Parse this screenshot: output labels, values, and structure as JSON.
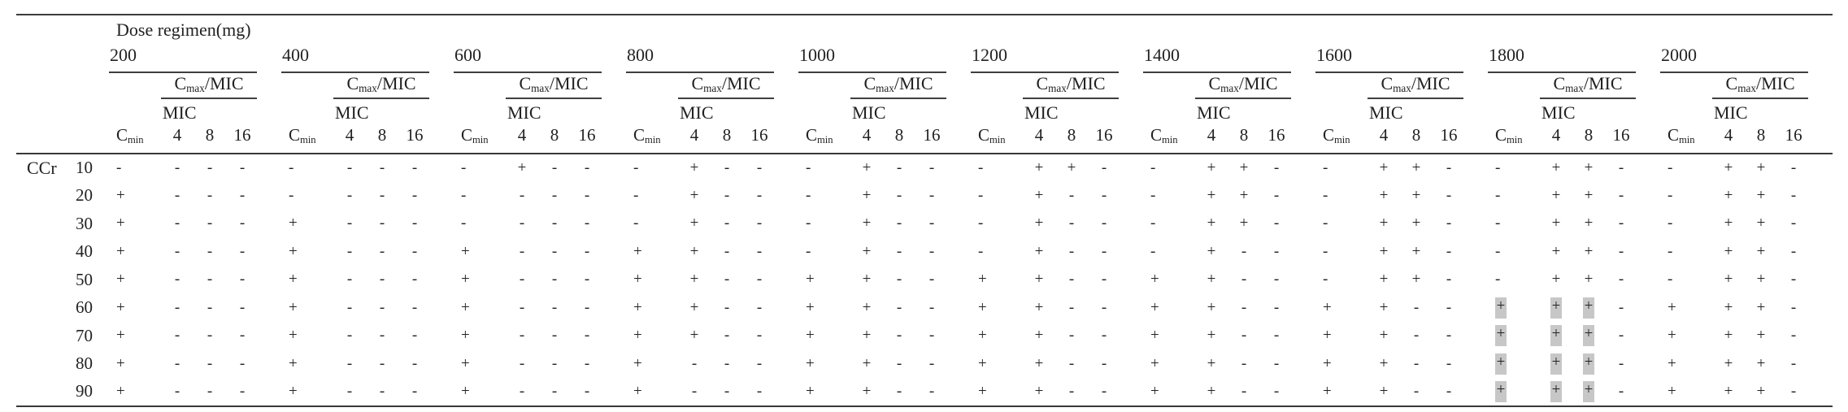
{
  "table": {
    "title": "Dose regimen(mg)",
    "row_axis_label": "CCr",
    "cmin_base": "C",
    "cmin_sub": "min",
    "cmax_base": "C",
    "cmax_sub": "max",
    "cmax_suffix": "/MIC",
    "mic_label": "MIC",
    "mic_values": [
      "4",
      "8",
      "16"
    ],
    "ccr_values": [
      "10",
      "20",
      "30",
      "40",
      "50",
      "60",
      "70",
      "80",
      "90"
    ],
    "symbols": {
      "attained": "+",
      "not_attained": "-"
    },
    "highlight": {
      "dose": "1800",
      "columns": [
        "cmin",
        "mic4",
        "mic8"
      ],
      "ccr_rows": [
        "60",
        "70",
        "80",
        "90"
      ],
      "color": "#c7c7c7"
    },
    "groups": [
      {
        "dose": "200",
        "cmin": [
          "-",
          "+",
          "+",
          "+",
          "+",
          "+",
          "+",
          "+",
          "+"
        ],
        "mic4": [
          "-",
          "-",
          "-",
          "-",
          "-",
          "-",
          "-",
          "-",
          "-"
        ],
        "mic8": [
          "-",
          "-",
          "-",
          "-",
          "-",
          "-",
          "-",
          "-",
          "-"
        ],
        "mic16": [
          "-",
          "-",
          "-",
          "-",
          "-",
          "-",
          "-",
          "-",
          "-"
        ]
      },
      {
        "dose": "400",
        "cmin": [
          "-",
          "-",
          "+",
          "+",
          "+",
          "+",
          "+",
          "+",
          "+"
        ],
        "mic4": [
          "-",
          "-",
          "-",
          "-",
          "-",
          "-",
          "-",
          "-",
          "-"
        ],
        "mic8": [
          "-",
          "-",
          "-",
          "-",
          "-",
          "-",
          "-",
          "-",
          "-"
        ],
        "mic16": [
          "-",
          "-",
          "-",
          "-",
          "-",
          "-",
          "-",
          "-",
          "-"
        ]
      },
      {
        "dose": "600",
        "cmin": [
          "-",
          "-",
          "-",
          "+",
          "+",
          "+",
          "+",
          "+",
          "+"
        ],
        "mic4": [
          "+",
          "-",
          "-",
          "-",
          "-",
          "-",
          "-",
          "-",
          "-"
        ],
        "mic8": [
          "-",
          "-",
          "-",
          "-",
          "-",
          "-",
          "-",
          "-",
          "-"
        ],
        "mic16": [
          "-",
          "-",
          "-",
          "-",
          "-",
          "-",
          "-",
          "-",
          "-"
        ]
      },
      {
        "dose": "800",
        "cmin": [
          "-",
          "-",
          "-",
          "+",
          "+",
          "+",
          "+",
          "+",
          "+"
        ],
        "mic4": [
          "+",
          "+",
          "+",
          "+",
          "+",
          "+",
          "+",
          "-",
          "-"
        ],
        "mic8": [
          "-",
          "-",
          "-",
          "-",
          "-",
          "-",
          "-",
          "-",
          "-"
        ],
        "mic16": [
          "-",
          "-",
          "-",
          "-",
          "-",
          "-",
          "-",
          "-",
          "-"
        ]
      },
      {
        "dose": "1000",
        "cmin": [
          "-",
          "-",
          "-",
          "-",
          "+",
          "+",
          "+",
          "+",
          "+"
        ],
        "mic4": [
          "+",
          "+",
          "+",
          "+",
          "+",
          "+",
          "+",
          "+",
          "+"
        ],
        "mic8": [
          "-",
          "-",
          "-",
          "-",
          "-",
          "-",
          "-",
          "-",
          "-"
        ],
        "mic16": [
          "-",
          "-",
          "-",
          "-",
          "-",
          "-",
          "-",
          "-",
          "-"
        ]
      },
      {
        "dose": "1200",
        "cmin": [
          "-",
          "-",
          "-",
          "-",
          "+",
          "+",
          "+",
          "+",
          "+"
        ],
        "mic4": [
          "+",
          "+",
          "+",
          "+",
          "+",
          "+",
          "+",
          "+",
          "+"
        ],
        "mic8": [
          "+",
          "-",
          "-",
          "-",
          "-",
          "-",
          "-",
          "-",
          "-"
        ],
        "mic16": [
          "-",
          "-",
          "-",
          "-",
          "-",
          "-",
          "-",
          "-",
          "-"
        ]
      },
      {
        "dose": "1400",
        "cmin": [
          "-",
          "-",
          "-",
          "-",
          "+",
          "+",
          "+",
          "+",
          "+"
        ],
        "mic4": [
          "+",
          "+",
          "+",
          "+",
          "+",
          "+",
          "+",
          "+",
          "+"
        ],
        "mic8": [
          "+",
          "+",
          "+",
          "-",
          "-",
          "-",
          "-",
          "-",
          "-"
        ],
        "mic16": [
          "-",
          "-",
          "-",
          "-",
          "-",
          "-",
          "-",
          "-",
          "-"
        ]
      },
      {
        "dose": "1600",
        "cmin": [
          "-",
          "-",
          "-",
          "-",
          "-",
          "+",
          "+",
          "+",
          "+"
        ],
        "mic4": [
          "+",
          "+",
          "+",
          "+",
          "+",
          "+",
          "+",
          "+",
          "+"
        ],
        "mic8": [
          "+",
          "+",
          "+",
          "+",
          "+",
          "-",
          "-",
          "-",
          "-"
        ],
        "mic16": [
          "-",
          "-",
          "-",
          "-",
          "-",
          "-",
          "-",
          "-",
          "-"
        ]
      },
      {
        "dose": "1800",
        "cmin": [
          "-",
          "-",
          "-",
          "-",
          "-",
          "+",
          "+",
          "+",
          "+"
        ],
        "mic4": [
          "+",
          "+",
          "+",
          "+",
          "+",
          "+",
          "+",
          "+",
          "+"
        ],
        "mic8": [
          "+",
          "+",
          "+",
          "+",
          "+",
          "+",
          "+",
          "+",
          "+"
        ],
        "mic16": [
          "-",
          "-",
          "-",
          "-",
          "-",
          "-",
          "-",
          "-",
          "-"
        ]
      },
      {
        "dose": "2000",
        "cmin": [
          "-",
          "-",
          "-",
          "-",
          "-",
          "+",
          "+",
          "+",
          "+"
        ],
        "mic4": [
          "+",
          "+",
          "+",
          "+",
          "+",
          "+",
          "+",
          "+",
          "+"
        ],
        "mic8": [
          "+",
          "+",
          "+",
          "+",
          "+",
          "+",
          "+",
          "+",
          "+"
        ],
        "mic16": [
          "-",
          "-",
          "-",
          "-",
          "-",
          "-",
          "-",
          "-",
          "-"
        ]
      }
    ]
  }
}
